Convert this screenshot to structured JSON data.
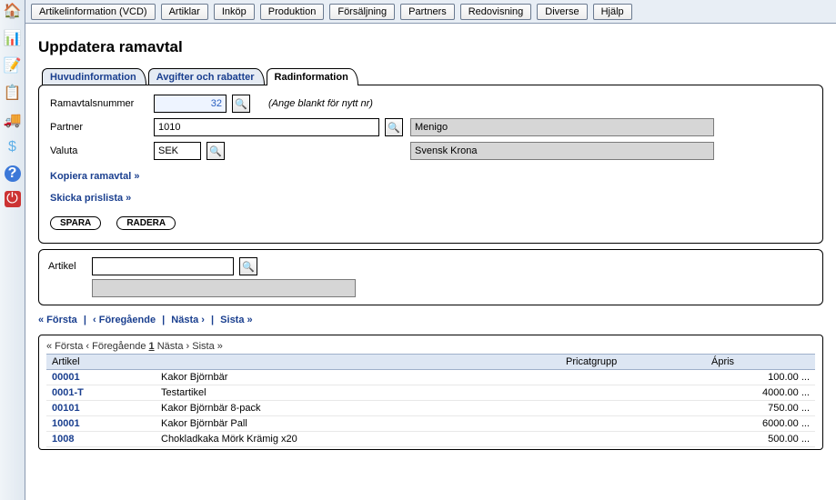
{
  "topmenu": [
    "Artikelinformation (VCD)",
    "Artiklar",
    "Inköp",
    "Produktion",
    "Försäljning",
    "Partners",
    "Redovisning",
    "Diverse",
    "Hjälp"
  ],
  "title": "Uppdatera ramavtal",
  "tabs": [
    {
      "label": "Huvudinformation",
      "active": false
    },
    {
      "label": "Avgifter och rabatter",
      "active": false
    },
    {
      "label": "Radinformation",
      "active": true
    }
  ],
  "form": {
    "ramavtal_label": "Ramavtalsnummer",
    "ramavtal_value": "32",
    "ramavtal_hint": "(Ange blankt för nytt nr)",
    "partner_label": "Partner",
    "partner_value": "1010",
    "partner_name": "Menigo",
    "valuta_label": "Valuta",
    "valuta_value": "SEK",
    "valuta_name": "Svensk Krona"
  },
  "links": {
    "kopiera": "Kopiera ramavtal »",
    "skicka": "Skicka prislista »"
  },
  "buttons": {
    "spara": "SPARA",
    "radera": "RADERA"
  },
  "artikel": {
    "label": "Artikel",
    "value": "",
    "desc": ""
  },
  "pager": {
    "first": "« Första",
    "prev": "‹ Föregående",
    "next": "Nästa ›",
    "last": "Sista »",
    "sep": "|"
  },
  "grid_pager": {
    "first": "« Första",
    "prev": "‹ Föregående",
    "page": "1",
    "next": "Nästa ›",
    "last": "Sista »"
  },
  "grid": {
    "columns": [
      "Artikel",
      "",
      "Pricatgrupp",
      "Ápris"
    ],
    "rows": [
      {
        "id": "00001",
        "name": "Kakor Björnbär",
        "pg": "",
        "price": "100.00 ..."
      },
      {
        "id": "0001-T",
        "name": "Testartikel",
        "pg": "",
        "price": "4000.00 ..."
      },
      {
        "id": "00101",
        "name": "Kakor Björnbär 8-pack",
        "pg": "",
        "price": "750.00 ..."
      },
      {
        "id": "10001",
        "name": "Kakor Björnbär Pall",
        "pg": "",
        "price": "6000.00 ..."
      },
      {
        "id": "1008",
        "name": "Chokladkaka Mörk Krämig x20",
        "pg": "",
        "price": "500.00 ..."
      }
    ]
  },
  "colors": {
    "link": "#1a3f8f",
    "header_bg": "#dde6f3",
    "readonly_bg": "#d6d6d6"
  }
}
